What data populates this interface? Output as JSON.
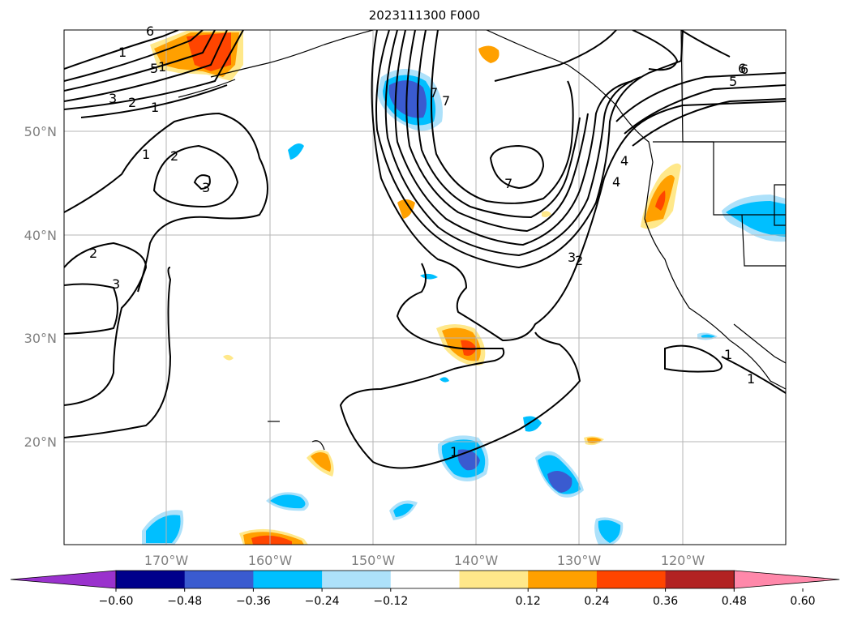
{
  "title": "2023111300 F000",
  "map": {
    "lat_labels": [
      "50°N",
      "40°N",
      "30°N",
      "20°N"
    ],
    "lon_labels": [
      "170°W",
      "160°W",
      "150°W",
      "140°W",
      "130°W",
      "120°W"
    ],
    "label_color": "#808080"
  },
  "contours": {
    "labels": [
      "1",
      "2",
      "3",
      "4",
      "5",
      "6",
      "7",
      "2",
      "3",
      "1",
      "2",
      "3",
      "7",
      "7",
      "4",
      "3",
      "2",
      "1",
      "1",
      "1",
      "6",
      "5",
      "6",
      "1",
      "1"
    ]
  },
  "colorbar": {
    "colors": [
      "#9a32cd",
      "#00008b",
      "#3a5bd0",
      "#00bfff",
      "#ade1fa",
      "#ffffff",
      "#ffe88a",
      "#ffa000",
      "#ff4500",
      "#b22222",
      "#ff88aa"
    ],
    "tick_labels": [
      "−0.60",
      "−0.48",
      "−0.36",
      "−0.24",
      "−0.12",
      "0.12",
      "0.24",
      "0.36",
      "0.48",
      "0.60"
    ]
  }
}
